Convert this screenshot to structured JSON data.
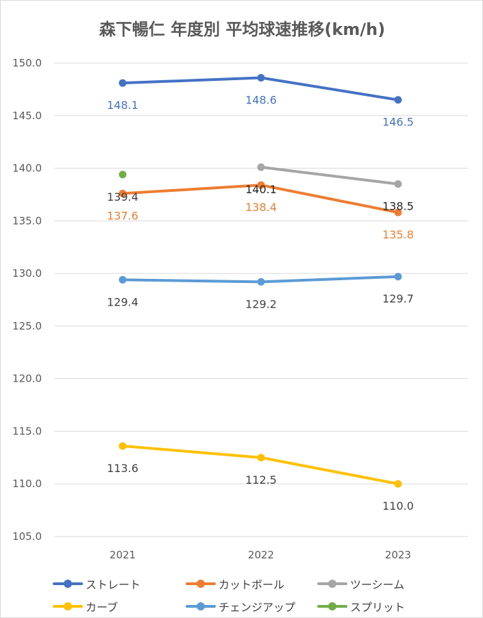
{
  "chart_data": {
    "type": "line",
    "title": "森下暢仁 年度別 平均球速推移(km/h)",
    "categories": [
      "2021",
      "2022",
      "2023"
    ],
    "ylim": [
      105.0,
      150.0
    ],
    "yticks": [
      "150.0",
      "145.0",
      "140.0",
      "135.0",
      "130.0",
      "125.0",
      "120.0",
      "115.0",
      "110.0",
      "105.0"
    ],
    "ytick_values": [
      150,
      145,
      140,
      135,
      130,
      125,
      120,
      115,
      110,
      105
    ],
    "grid": true,
    "legend_position": "bottom",
    "series": [
      {
        "name": "ストレート",
        "color": "#4472c4",
        "values": [
          148.1,
          148.6,
          146.5
        ],
        "labels": [
          "148.1",
          "148.6",
          "146.5"
        ],
        "label_color": "#4472c4",
        "label_pos": "below"
      },
      {
        "name": "カットボール",
        "color": "#ed7d31",
        "values": [
          137.6,
          138.4,
          135.8
        ],
        "labels": [
          "137.6",
          "138.4",
          "135.8"
        ],
        "label_color": "#ed7d31",
        "label_pos": "below"
      },
      {
        "name": "ツーシーム",
        "color": "#a5a5a5",
        "values": [
          null,
          140.1,
          138.5
        ],
        "labels": [
          null,
          "140.1",
          "138.5"
        ],
        "label_color": "#262626",
        "label_pos": "below"
      },
      {
        "name": "カーブ",
        "color": "#ffc000",
        "values": [
          113.6,
          112.5,
          110.0
        ],
        "labels": [
          "113.6",
          "112.5",
          "110.0"
        ],
        "label_color": "#404040",
        "label_pos": "below"
      },
      {
        "name": "チェンジアップ",
        "color": "#5b9bd5",
        "values": [
          129.4,
          129.2,
          129.7
        ],
        "labels": [
          "129.4",
          "129.2",
          "129.7"
        ],
        "label_color": "#404040",
        "label_pos": "below"
      },
      {
        "name": "スプリット",
        "color": "#70ad47",
        "values": [
          139.4,
          null,
          null
        ],
        "labels": [
          "139.4",
          null,
          null
        ],
        "label_color": "#404040",
        "label_pos": "below"
      }
    ]
  }
}
